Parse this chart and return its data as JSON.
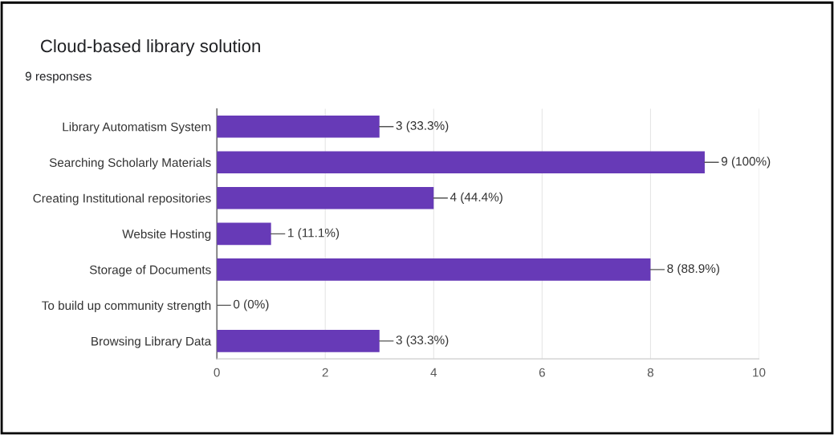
{
  "chart_data": {
    "type": "bar",
    "orientation": "horizontal",
    "title": "Cloud-based library solution",
    "subtitle": "9 responses",
    "categories": [
      "Library Automatism System",
      "Searching Scholarly Materials",
      "Creating Institutional repositories",
      "Website Hosting",
      "Storage of Documents",
      "To build up community strength",
      "Browsing Library Data"
    ],
    "values": [
      3,
      9,
      4,
      1,
      8,
      0,
      3
    ],
    "value_labels": [
      "3 (33.3%)",
      "9 (100%)",
      "4 (44.4%)",
      "1 (11.1%)",
      "8 (88.9%)",
      "0 (0%)",
      "3 (33.3%)"
    ],
    "color": "#673ab7",
    "xlim": [
      0,
      10
    ],
    "xticks": [
      0,
      2,
      4,
      6,
      8,
      10
    ],
    "grid": "x"
  }
}
